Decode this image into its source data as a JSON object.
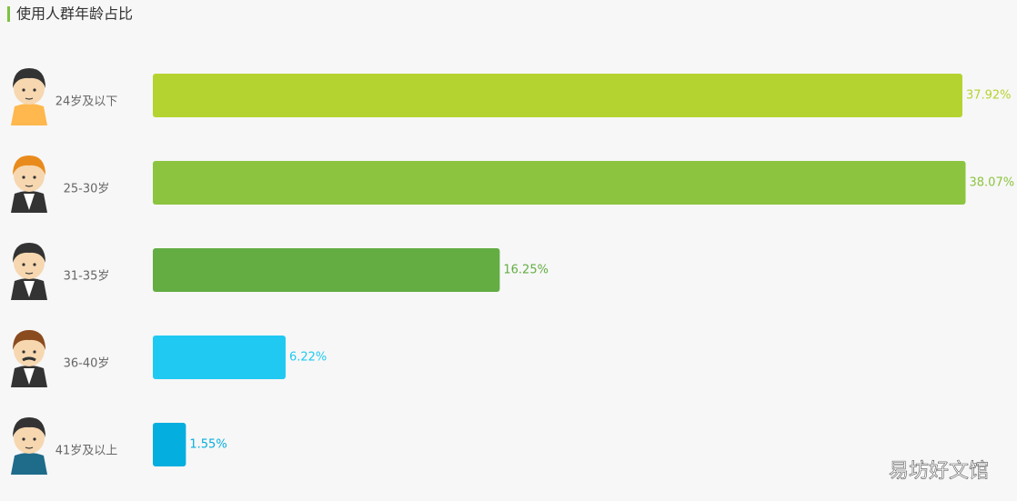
{
  "chart_data": {
    "type": "bar",
    "orientation": "horizontal",
    "title": "使用人群年龄占比",
    "categories": [
      "24岁及以下",
      "25-30岁",
      "31-35岁",
      "36-40岁",
      "41岁及以上"
    ],
    "values": [
      37.92,
      38.07,
      16.25,
      6.22,
      1.55
    ],
    "value_labels": [
      "37.92%",
      "38.07%",
      "16.25%",
      "6.22%",
      "1.55%"
    ],
    "colors": [
      "#b5d330",
      "#8cc43f",
      "#63ad43",
      "#20c9f2",
      "#04aede"
    ]
  },
  "watermark": "易坊好文馆"
}
